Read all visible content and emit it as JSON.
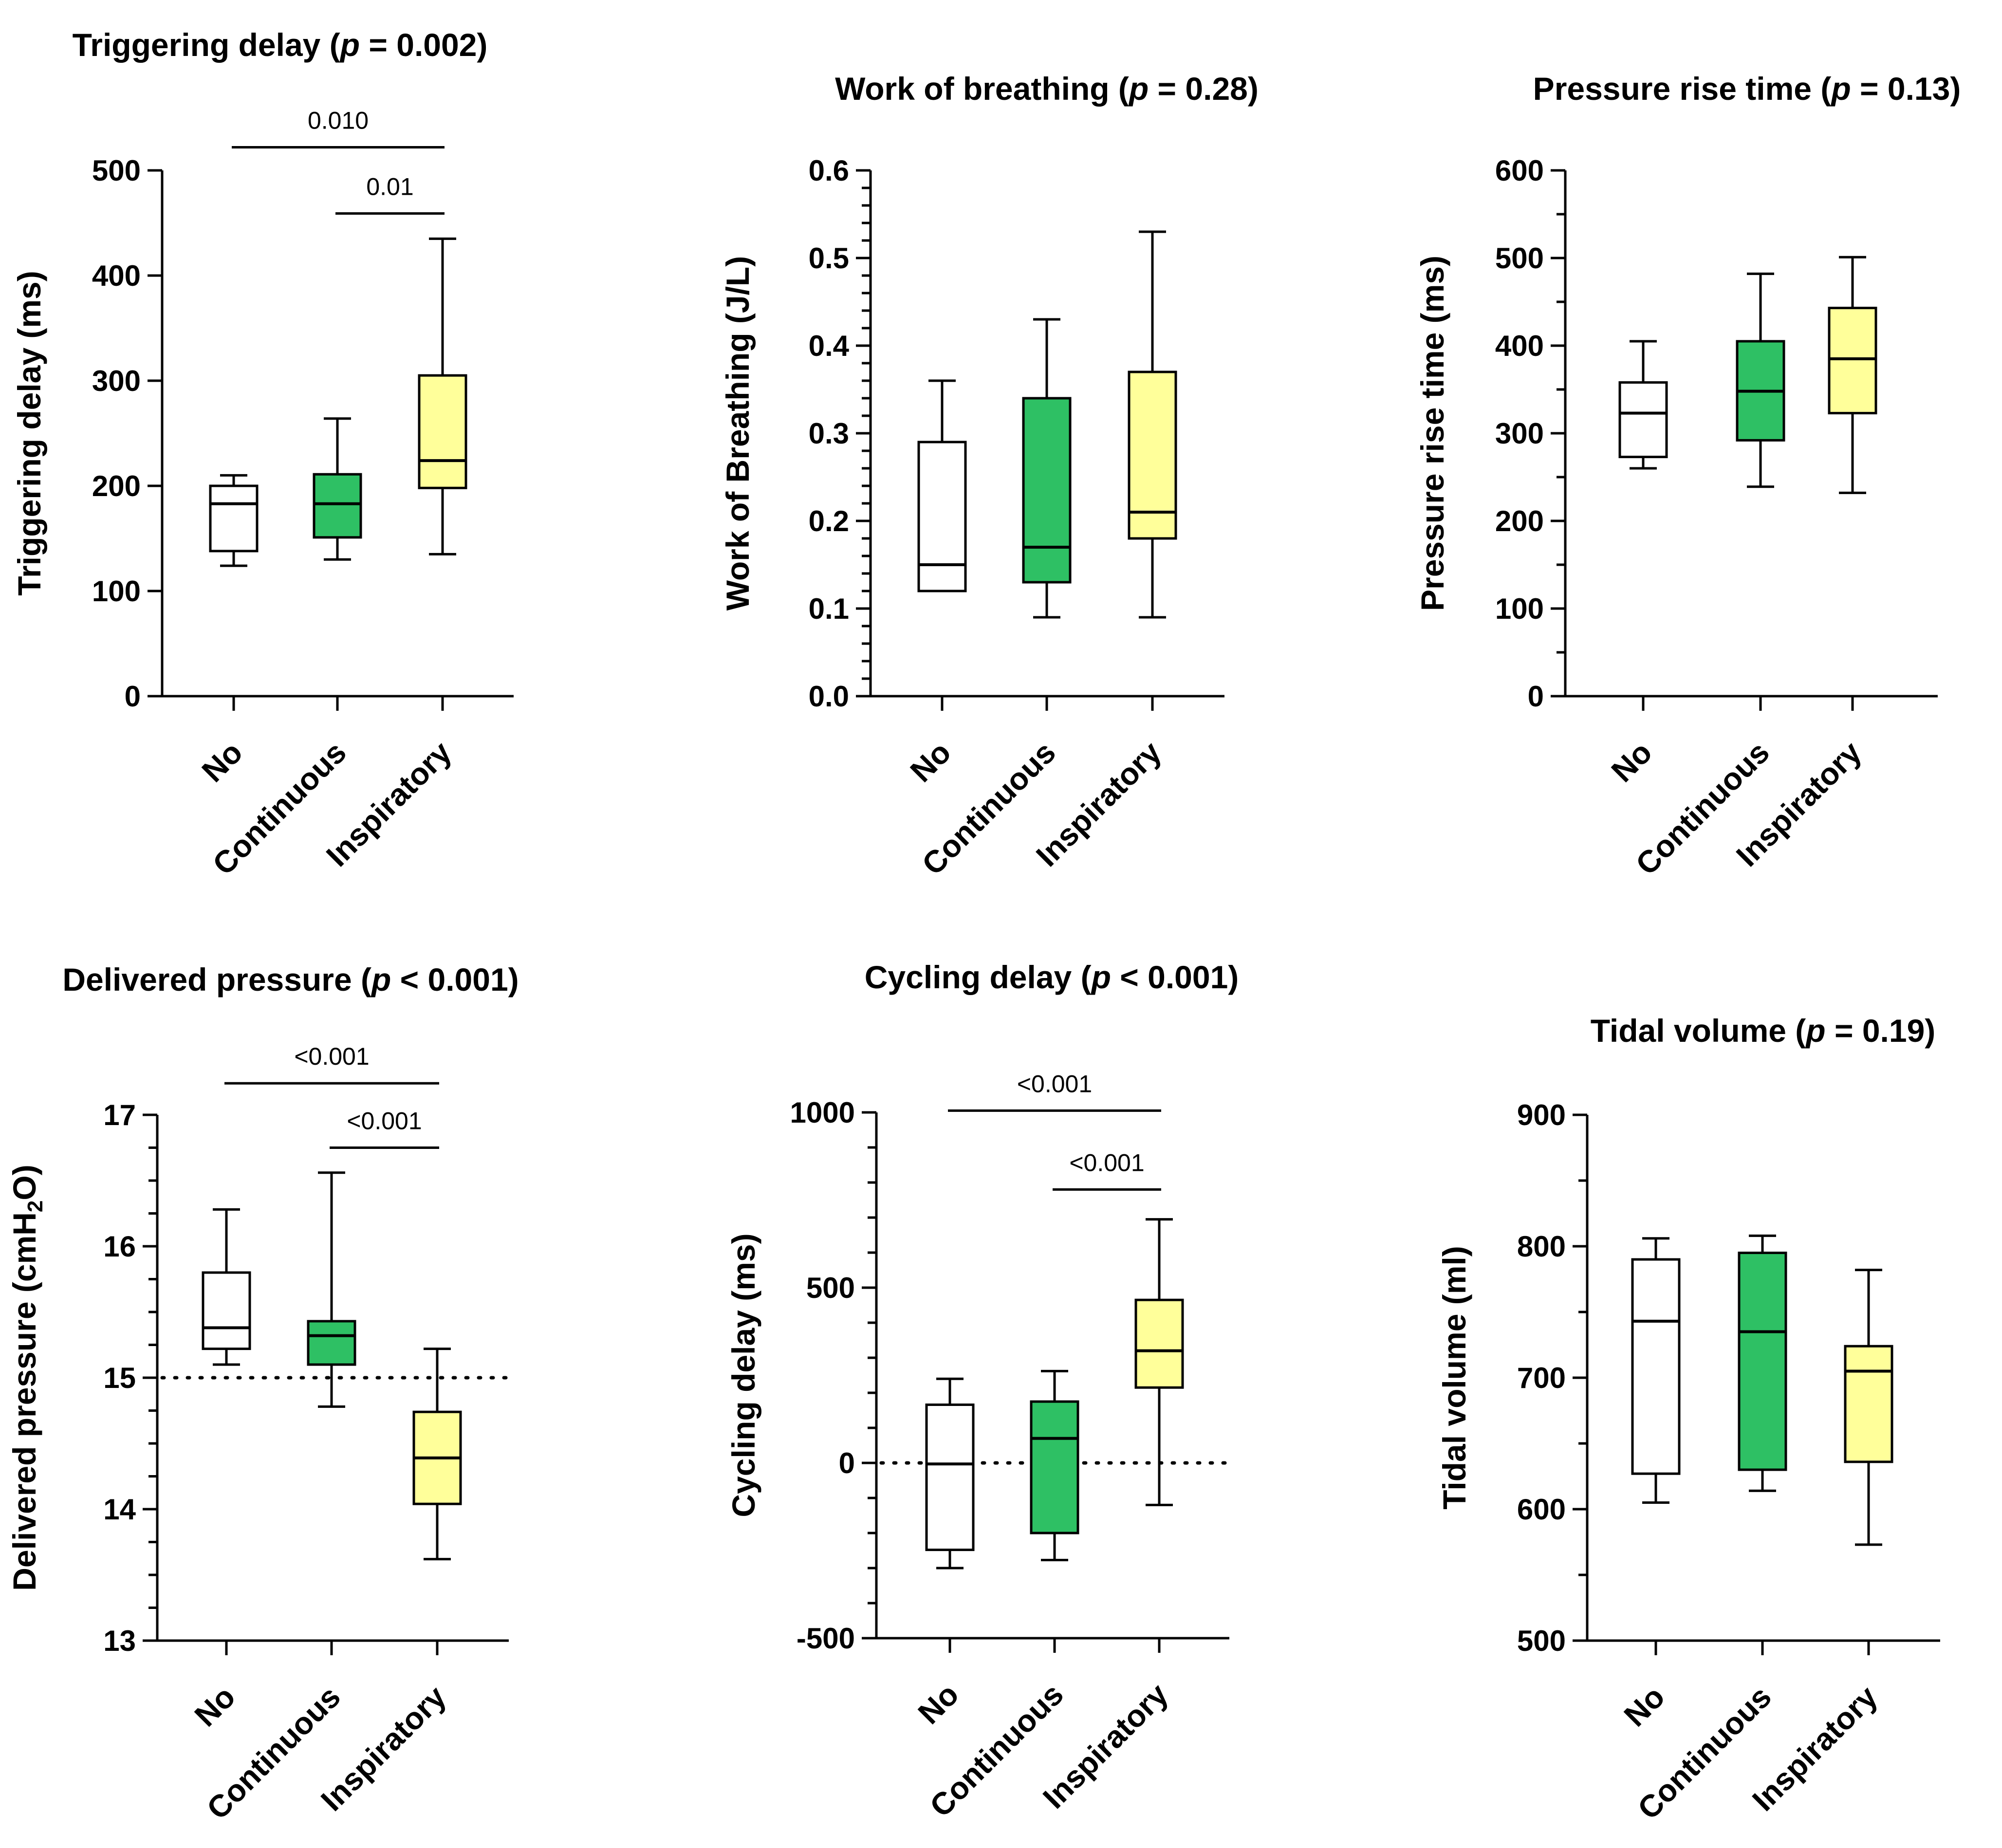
{
  "colors": {
    "No": "#ffffff",
    "Continuous": "#2ec064",
    "Inspiratory": "#ffff9a"
  },
  "chart_data": [
    {
      "type": "box",
      "title": "Triggering delay (",
      "p_value": "p = 0.002",
      "ylabel": "Triggering delay (ms)",
      "ylim": [
        0,
        500
      ],
      "yticks": [
        "0",
        "100",
        "200",
        "300",
        "400",
        "500"
      ],
      "ytick_values": [
        0,
        100,
        200,
        300,
        400,
        500
      ],
      "minor_ticks": false,
      "categories": [
        "No",
        "Continuous",
        "Inspiratory"
      ],
      "boxes": [
        {
          "min": 124,
          "q1": 138,
          "median": 183,
          "q3": 200,
          "max": 210
        },
        {
          "min": 130,
          "q1": 151,
          "median": 183,
          "q3": 211,
          "max": 264
        },
        {
          "min": 135,
          "q1": 198,
          "median": 224,
          "q3": 305,
          "max": 435
        }
      ],
      "comparisons": [
        {
          "from": "No",
          "to": "Inspiratory",
          "label": "0.010",
          "y": 522
        },
        {
          "from": "Continuous",
          "to": "Inspiratory",
          "label": "0.01",
          "y": 459
        }
      ],
      "reference_line": null
    },
    {
      "type": "box",
      "title": "Work of breathing (",
      "p_value": "p = 0.28",
      "ylabel": "Work of Breathing (J/L)",
      "ylim": [
        0,
        0.6
      ],
      "yticks": [
        "0.0",
        "0.1",
        "0.2",
        "0.3",
        "0.4",
        "0.5",
        "0.6"
      ],
      "ytick_values": [
        0,
        0.1,
        0.2,
        0.3,
        0.4,
        0.5,
        0.6
      ],
      "minor_ticks": true,
      "categories": [
        "No",
        "Continuous",
        "Inspiratory"
      ],
      "boxes": [
        {
          "min": 0.12,
          "q1": 0.12,
          "median": 0.15,
          "q3": 0.29,
          "max": 0.36
        },
        {
          "min": 0.09,
          "q1": 0.13,
          "median": 0.17,
          "q3": 0.34,
          "max": 0.43
        },
        {
          "min": 0.09,
          "q1": 0.18,
          "median": 0.21,
          "q3": 0.37,
          "max": 0.53
        }
      ],
      "comparisons": [],
      "reference_line": null
    },
    {
      "type": "box",
      "title": "Pressure rise time (",
      "p_value": "p = 0.13",
      "ylabel": "Pressure rise time (ms)",
      "ylim": [
        0,
        600
      ],
      "yticks": [
        "0",
        "100",
        "200",
        "300",
        "400",
        "500",
        "600"
      ],
      "ytick_values": [
        0,
        100,
        200,
        300,
        400,
        500,
        600
      ],
      "minor_ticks": true,
      "categories": [
        "No",
        "Continuous",
        "Inspiratory"
      ],
      "boxes": [
        {
          "min": 260,
          "q1": 273,
          "median": 323,
          "q3": 358,
          "max": 405
        },
        {
          "min": 239,
          "q1": 292,
          "median": 348,
          "q3": 405,
          "max": 482
        },
        {
          "min": 232,
          "q1": 323,
          "median": 385,
          "q3": 443,
          "max": 501
        }
      ],
      "comparisons": [],
      "reference_line": null
    },
    {
      "type": "box",
      "title": "Delivered pressure (",
      "p_value": "p < 0.001",
      "ylabel": "Delivered pressure (cmH",
      "ylabel_sub": "2",
      "ylabel_end": "O)",
      "ylim": [
        13,
        17
      ],
      "yticks": [
        "13",
        "14",
        "15",
        "16",
        "17"
      ],
      "ytick_values": [
        13,
        14,
        15,
        16,
        17
      ],
      "minor_ticks": true,
      "categories": [
        "No",
        "Continuous",
        "Inspiratory"
      ],
      "boxes": [
        {
          "min": 15.1,
          "q1": 15.22,
          "median": 15.38,
          "q3": 15.8,
          "max": 16.28
        },
        {
          "min": 14.78,
          "q1": 15.1,
          "median": 15.32,
          "q3": 15.43,
          "max": 16.56
        },
        {
          "min": 13.62,
          "q1": 14.04,
          "median": 14.39,
          "q3": 14.74,
          "max": 15.22
        }
      ],
      "comparisons": [
        {
          "from": "No",
          "to": "Inspiratory",
          "label": "<0.001",
          "y": 17.24
        },
        {
          "from": "Continuous",
          "to": "Inspiratory",
          "label": "<0.001",
          "y": 16.75
        }
      ],
      "reference_line": 15
    },
    {
      "type": "box",
      "title": "Cycling delay (",
      "p_value": "p < 0.001",
      "ylabel": "Cycling delay (ms)",
      "ylim": [
        -500,
        1000
      ],
      "yticks": [
        "-500",
        "0",
        "500",
        "1000"
      ],
      "ytick_values": [
        -500,
        0,
        500,
        1000
      ],
      "minor_ticks": true,
      "categories": [
        "No",
        "Continuous",
        "Inspiratory"
      ],
      "boxes": [
        {
          "min": -300,
          "q1": -248,
          "median": -3,
          "q3": 166,
          "max": 240
        },
        {
          "min": -277,
          "q1": -200,
          "median": 70,
          "q3": 175,
          "max": 262
        },
        {
          "min": -120,
          "q1": 215,
          "median": 320,
          "q3": 465,
          "max": 695
        }
      ],
      "comparisons": [
        {
          "from": "No",
          "to": "Inspiratory",
          "label": "<0.001",
          "y": 1005
        },
        {
          "from": "Continuous",
          "to": "Inspiratory",
          "label": "<0.001",
          "y": 780
        }
      ],
      "reference_line": 0
    },
    {
      "type": "box",
      "title": "Tidal volume (",
      "p_value": "p = 0.19",
      "ylabel": "Tidal volume (ml)",
      "ylim": [
        500,
        900
      ],
      "yticks": [
        "500",
        "600",
        "700",
        "800",
        "900"
      ],
      "ytick_values": [
        500,
        600,
        700,
        800,
        900
      ],
      "minor_ticks": true,
      "categories": [
        "No",
        "Continuous",
        "Inspiratory"
      ],
      "boxes": [
        {
          "min": 605,
          "q1": 627,
          "median": 743,
          "q3": 790,
          "max": 806
        },
        {
          "min": 614,
          "q1": 630,
          "median": 735,
          "q3": 795,
          "max": 808
        },
        {
          "min": 573,
          "q1": 636,
          "median": 705,
          "q3": 724,
          "max": 782
        }
      ],
      "comparisons": [],
      "reference_line": null
    }
  ]
}
